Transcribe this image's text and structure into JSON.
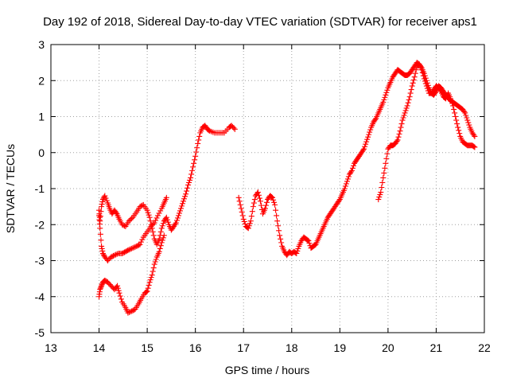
{
  "chart_data": {
    "type": "scatter",
    "title": "Day 192 of 2018, Sidereal Day-to-day VTEC variation (SDTVAR) for receiver aps1",
    "xlabel": "GPS time / hours",
    "ylabel": "SDTVAR / TECUs",
    "xlim": [
      13,
      22
    ],
    "ylim": [
      -5,
      3
    ],
    "x_ticks": [
      "13",
      "14",
      "15",
      "16",
      "17",
      "18",
      "19",
      "20",
      "21",
      "22"
    ],
    "y_ticks": [
      "-5",
      "-4",
      "-3",
      "-2",
      "-1",
      "0",
      "1",
      "2",
      "3"
    ],
    "grid": true,
    "legend": "none",
    "marker": "plus",
    "color": "#ff0000",
    "series": [
      {
        "points": [
          [
            14.0,
            -1.6
          ],
          [
            14.02,
            -1.9
          ],
          [
            14.05,
            -1.5
          ],
          [
            14.08,
            -1.3
          ],
          [
            14.12,
            -1.2
          ],
          [
            14.18,
            -1.4
          ],
          [
            14.22,
            -1.55
          ],
          [
            14.27,
            -1.7
          ],
          [
            14.32,
            -1.6
          ],
          [
            14.37,
            -1.7
          ],
          [
            14.42,
            -1.85
          ],
          [
            14.48,
            -2.0
          ],
          [
            14.55,
            -2.05
          ],
          [
            14.62,
            -1.9
          ],
          [
            14.7,
            -1.8
          ],
          [
            14.78,
            -1.65
          ],
          [
            14.85,
            -1.5
          ],
          [
            14.92,
            -1.45
          ],
          [
            15.0,
            -1.6
          ],
          [
            15.05,
            -1.8
          ],
          [
            15.1,
            -2.1
          ],
          [
            15.15,
            -2.4
          ],
          [
            15.2,
            -2.55
          ],
          [
            15.25,
            -2.4
          ],
          [
            15.3,
            -2.1
          ],
          [
            15.35,
            -1.9
          ],
          [
            15.4,
            -1.8
          ],
          [
            15.45,
            -2.0
          ],
          [
            15.5,
            -2.15
          ],
          [
            15.55,
            -2.05
          ],
          [
            15.6,
            -1.95
          ],
          [
            15.65,
            -1.75
          ],
          [
            15.7,
            -1.55
          ],
          [
            15.75,
            -1.35
          ],
          [
            15.8,
            -1.15
          ],
          [
            15.85,
            -0.9
          ],
          [
            15.9,
            -0.7
          ],
          [
            15.95,
            -0.4
          ],
          [
            16.0,
            -0.1
          ],
          [
            16.05,
            0.25
          ],
          [
            16.1,
            0.55
          ],
          [
            16.15,
            0.7
          ],
          [
            16.2,
            0.75
          ],
          [
            16.25,
            0.65
          ],
          [
            16.3,
            0.6
          ],
          [
            16.4,
            0.55
          ],
          [
            16.5,
            0.55
          ],
          [
            16.6,
            0.55
          ],
          [
            16.7,
            0.7
          ],
          [
            16.75,
            0.75
          ],
          [
            16.82,
            0.65
          ]
        ]
      },
      {
        "points": [
          [
            14.0,
            -1.75
          ],
          [
            14.02,
            -2.1
          ],
          [
            14.05,
            -2.6
          ],
          [
            14.08,
            -2.8
          ],
          [
            14.12,
            -2.9
          ],
          [
            14.18,
            -3.0
          ],
          [
            14.25,
            -2.9
          ],
          [
            14.32,
            -2.85
          ],
          [
            14.4,
            -2.8
          ],
          [
            14.48,
            -2.8
          ],
          [
            14.55,
            -2.75
          ],
          [
            14.62,
            -2.7
          ],
          [
            14.7,
            -2.65
          ],
          [
            14.78,
            -2.6
          ],
          [
            14.85,
            -2.55
          ],
          [
            14.92,
            -2.35
          ],
          [
            15.0,
            -2.2
          ],
          [
            15.08,
            -2.05
          ],
          [
            15.15,
            -1.95
          ],
          [
            15.22,
            -1.75
          ],
          [
            15.3,
            -1.55
          ],
          [
            15.35,
            -1.4
          ],
          [
            15.4,
            -1.25
          ]
        ]
      },
      {
        "points": [
          [
            14.0,
            -4.0
          ],
          [
            14.02,
            -3.8
          ],
          [
            14.05,
            -3.7
          ],
          [
            14.08,
            -3.6
          ],
          [
            14.12,
            -3.55
          ],
          [
            14.18,
            -3.6
          ],
          [
            14.25,
            -3.7
          ],
          [
            14.32,
            -3.8
          ],
          [
            14.38,
            -3.7
          ],
          [
            14.42,
            -3.9
          ],
          [
            14.48,
            -4.15
          ],
          [
            14.55,
            -4.3
          ],
          [
            14.6,
            -4.45
          ],
          [
            14.68,
            -4.4
          ],
          [
            14.75,
            -4.35
          ],
          [
            14.82,
            -4.2
          ],
          [
            14.88,
            -4.05
          ],
          [
            14.95,
            -3.9
          ],
          [
            15.0,
            -3.85
          ],
          [
            15.05,
            -3.6
          ],
          [
            15.1,
            -3.4
          ],
          [
            15.15,
            -3.1
          ],
          [
            15.2,
            -2.9
          ],
          [
            15.25,
            -2.75
          ],
          [
            15.3,
            -2.5
          ],
          [
            15.35,
            -2.3
          ]
        ]
      },
      {
        "points": [
          [
            16.9,
            -1.25
          ],
          [
            16.95,
            -1.55
          ],
          [
            17.0,
            -1.85
          ],
          [
            17.05,
            -2.05
          ],
          [
            17.1,
            -2.1
          ],
          [
            17.15,
            -1.9
          ],
          [
            17.2,
            -1.5
          ],
          [
            17.25,
            -1.2
          ],
          [
            17.3,
            -1.1
          ],
          [
            17.35,
            -1.35
          ],
          [
            17.4,
            -1.7
          ],
          [
            17.45,
            -1.55
          ],
          [
            17.5,
            -1.3
          ],
          [
            17.55,
            -1.2
          ],
          [
            17.6,
            -1.25
          ],
          [
            17.65,
            -1.45
          ],
          [
            17.7,
            -1.9
          ],
          [
            17.75,
            -2.3
          ],
          [
            17.8,
            -2.6
          ],
          [
            17.85,
            -2.75
          ],
          [
            17.9,
            -2.85
          ],
          [
            17.95,
            -2.75
          ],
          [
            18.0,
            -2.8
          ],
          [
            18.05,
            -2.75
          ],
          [
            18.1,
            -2.8
          ],
          [
            18.15,
            -2.6
          ],
          [
            18.2,
            -2.45
          ],
          [
            18.25,
            -2.35
          ],
          [
            18.3,
            -2.4
          ],
          [
            18.35,
            -2.45
          ],
          [
            18.4,
            -2.65
          ],
          [
            18.45,
            -2.6
          ],
          [
            18.5,
            -2.55
          ],
          [
            18.55,
            -2.4
          ],
          [
            18.6,
            -2.25
          ],
          [
            18.65,
            -2.1
          ],
          [
            18.7,
            -1.95
          ],
          [
            18.75,
            -1.8
          ],
          [
            18.8,
            -1.7
          ],
          [
            18.85,
            -1.6
          ],
          [
            18.9,
            -1.5
          ],
          [
            18.95,
            -1.4
          ],
          [
            19.0,
            -1.3
          ],
          [
            19.05,
            -1.15
          ],
          [
            19.1,
            -1.0
          ],
          [
            19.15,
            -0.8
          ],
          [
            19.2,
            -0.6
          ],
          [
            19.25,
            -0.5
          ],
          [
            19.3,
            -0.3
          ],
          [
            19.35,
            -0.2
          ],
          [
            19.4,
            -0.1
          ],
          [
            19.45,
            0.0
          ],
          [
            19.5,
            0.1
          ],
          [
            19.55,
            0.3
          ],
          [
            19.6,
            0.5
          ],
          [
            19.65,
            0.7
          ],
          [
            19.7,
            0.85
          ],
          [
            19.75,
            0.95
          ],
          [
            19.8,
            1.1
          ],
          [
            19.85,
            1.25
          ],
          [
            19.9,
            1.4
          ],
          [
            19.95,
            1.6
          ],
          [
            20.0,
            1.8
          ],
          [
            20.05,
            1.95
          ],
          [
            20.1,
            2.1
          ],
          [
            20.15,
            2.2
          ],
          [
            20.2,
            2.3
          ],
          [
            20.25,
            2.25
          ],
          [
            20.3,
            2.2
          ],
          [
            20.35,
            2.15
          ],
          [
            20.4,
            2.15
          ],
          [
            20.45,
            2.2
          ],
          [
            20.5,
            2.3
          ],
          [
            20.55,
            2.4
          ],
          [
            20.6,
            2.5
          ],
          [
            20.65,
            2.45
          ],
          [
            20.7,
            2.35
          ],
          [
            20.75,
            2.2
          ],
          [
            20.8,
            2.0
          ],
          [
            20.85,
            1.8
          ],
          [
            20.9,
            1.65
          ],
          [
            20.95,
            1.6
          ],
          [
            21.0,
            1.7
          ],
          [
            21.05,
            1.85
          ],
          [
            21.1,
            1.8
          ],
          [
            21.15,
            1.7
          ],
          [
            21.2,
            1.6
          ],
          [
            21.25,
            1.5
          ],
          [
            21.3,
            1.45
          ],
          [
            21.35,
            1.4
          ],
          [
            21.4,
            1.35
          ],
          [
            21.45,
            1.3
          ],
          [
            21.5,
            1.25
          ],
          [
            21.55,
            1.2
          ],
          [
            21.6,
            1.1
          ],
          [
            21.65,
            0.9
          ],
          [
            21.7,
            0.7
          ],
          [
            21.75,
            0.55
          ],
          [
            21.8,
            0.45
          ]
        ]
      },
      {
        "points": [
          [
            19.8,
            -1.3
          ],
          [
            19.85,
            -1.1
          ],
          [
            19.9,
            -0.7
          ],
          [
            19.95,
            -0.3
          ],
          [
            20.0,
            0.1
          ],
          [
            20.05,
            0.2
          ],
          [
            20.1,
            0.2
          ],
          [
            20.15,
            0.25
          ],
          [
            20.2,
            0.35
          ],
          [
            20.25,
            0.6
          ],
          [
            20.3,
            0.9
          ],
          [
            20.35,
            1.1
          ],
          [
            20.4,
            1.3
          ],
          [
            20.45,
            1.55
          ],
          [
            20.5,
            1.85
          ],
          [
            20.55,
            2.1
          ],
          [
            20.6,
            2.4
          ],
          [
            20.65,
            2.45
          ],
          [
            20.7,
            2.3
          ],
          [
            20.75,
            2.05
          ],
          [
            20.8,
            1.85
          ],
          [
            20.85,
            1.65
          ],
          [
            20.9,
            1.65
          ],
          [
            20.95,
            1.75
          ],
          [
            21.0,
            1.85
          ],
          [
            21.05,
            1.8
          ],
          [
            21.1,
            1.7
          ],
          [
            21.15,
            1.55
          ],
          [
            21.2,
            1.5
          ],
          [
            21.25,
            1.65
          ],
          [
            21.3,
            1.5
          ],
          [
            21.35,
            1.3
          ],
          [
            21.4,
            1.0
          ],
          [
            21.45,
            0.7
          ],
          [
            21.5,
            0.45
          ],
          [
            21.55,
            0.3
          ],
          [
            21.6,
            0.25
          ],
          [
            21.65,
            0.2
          ],
          [
            21.7,
            0.2
          ],
          [
            21.75,
            0.2
          ],
          [
            21.8,
            0.15
          ]
        ]
      }
    ]
  }
}
